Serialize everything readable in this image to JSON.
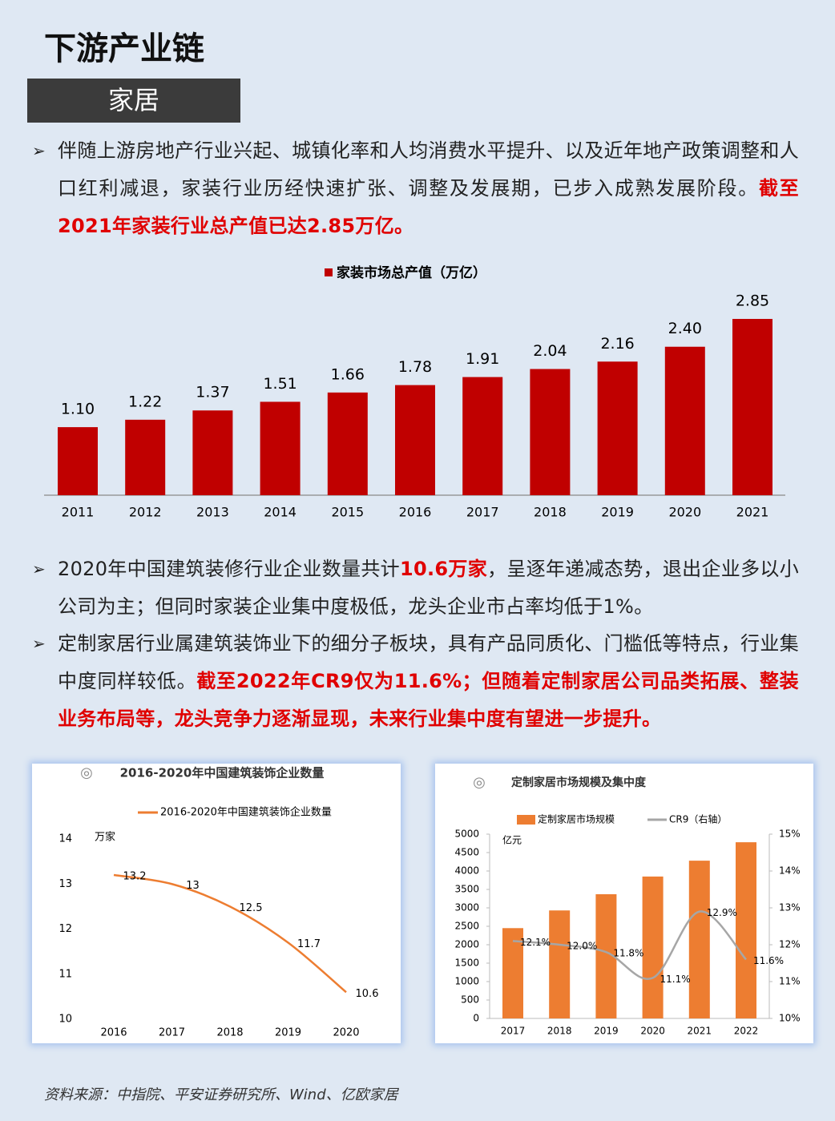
{
  "title": "下游产业链",
  "section": "家居",
  "paragraphs": [
    {
      "runs": [
        {
          "text": "伴随上游房地产行业兴起、城镇化率和人均消费水平提升、以及近年地产政策调整和人口红利减退，家装行业历经快速扩张、调整及发展期，已步入成熟发展阶段。",
          "highlight": false
        },
        {
          "text": "截至2021年家装行业总产值已达2.85万亿。",
          "highlight": true
        }
      ]
    },
    {
      "runs": [
        {
          "text": "2020年中国建筑装修行业企业数量共计",
          "highlight": false
        },
        {
          "text": "10.6万家",
          "highlight": true
        },
        {
          "text": "，呈逐年递减态势，退出企业多以小公司为主；但同时家装企业集中度极低，龙头企业市占率均低于1%。",
          "highlight": false
        }
      ]
    },
    {
      "runs": [
        {
          "text": "定制家居行业属建筑装饰业下的细分子板块，具有产品同质化、门槛低等特点，行业集中度同样较低。",
          "highlight": false
        },
        {
          "text": "截至2022年CR9仅为11.6%；但随着定制家居公司品类拓展、整装业务布局等，龙头竞争力逐渐显现，未来行业集中度有望进一步提升。",
          "highlight": true
        }
      ]
    }
  ],
  "chart_data": [
    {
      "type": "bar",
      "categories": [
        "2011",
        "2012",
        "2013",
        "2014",
        "2015",
        "2016",
        "2017",
        "2018",
        "2019",
        "2020",
        "2021"
      ],
      "series": [
        {
          "name": "家装市场总产值（万亿）",
          "color": "#c00000",
          "values": [
            1.1,
            1.22,
            1.37,
            1.51,
            1.66,
            1.78,
            1.91,
            2.04,
            2.16,
            2.4,
            2.85
          ],
          "value_labels": [
            "1.10",
            "1.22",
            "1.37",
            "1.51",
            "1.66",
            "1.78",
            "1.91",
            "2.04",
            "2.16",
            "2.40",
            "2.85"
          ]
        }
      ]
    },
    {
      "type": "line",
      "title": "2016-2020年中国建筑装饰企业数量",
      "y_label": "万家",
      "categories": [
        "2016",
        "2017",
        "2018",
        "2019",
        "2020"
      ],
      "series": [
        {
          "name": "2016-2020年中国建筑装饰企业数量",
          "color": "#ed7d31",
          "values": [
            13.2,
            13,
            12.5,
            11.7,
            10.6
          ]
        }
      ],
      "ylim": [
        10,
        14
      ],
      "yticks": [
        10,
        11,
        12,
        13,
        14
      ]
    },
    {
      "type": "bar-line",
      "title": "定制家居市场规模及集中度",
      "y_label": "亿元",
      "categories": [
        "2017",
        "2018",
        "2019",
        "2020",
        "2021",
        "2022"
      ],
      "series": [
        {
          "name": "定制家居市场规模",
          "color": "#ed7d31",
          "values": [
            2450,
            2930,
            3370,
            3850,
            4280,
            4780
          ]
        },
        {
          "name": "CR9（右轴）",
          "color": "#a6a6a6",
          "axis": "y2",
          "values": [
            12.1,
            12.0,
            11.8,
            11.1,
            12.9,
            11.6
          ],
          "value_labels": [
            "12.1%",
            "12.0%",
            "11.8%",
            "11.1%",
            "12.9%",
            "11.6%"
          ]
        }
      ],
      "ylim": [
        0,
        5000
      ],
      "yticks": [
        0,
        500,
        1000,
        1500,
        2000,
        2500,
        3000,
        3500,
        4000,
        4500,
        5000
      ],
      "y2lim": [
        10,
        15
      ],
      "y2ticks": [
        {
          "value": 10,
          "label": "10%"
        },
        {
          "value": 11,
          "label": "11%"
        },
        {
          "value": 12,
          "label": "12%"
        },
        {
          "value": 13,
          "label": "13%"
        },
        {
          "value": 14,
          "label": "14%"
        },
        {
          "value": 15,
          "label": "15%"
        }
      ]
    }
  ],
  "source": "资料来源：中指院、平安证券研究所、Wind、亿欧家居"
}
